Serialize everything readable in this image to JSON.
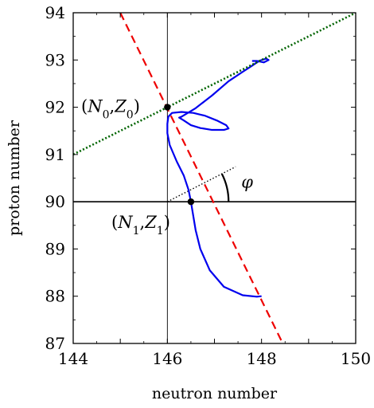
{
  "chart_data": {
    "type": "line",
    "title": "",
    "xlabel": "neutron number",
    "ylabel": "proton number",
    "xlim": [
      144,
      150
    ],
    "ylim": [
      87,
      94
    ],
    "xticks": [
      "144",
      "146",
      "148",
      "150"
    ],
    "yticks": [
      "87",
      "88",
      "89",
      "90",
      "91",
      "92",
      "93",
      "94"
    ],
    "grid": false,
    "series": [
      {
        "style": "solid",
        "color": "#0000ee",
        "x": [
          148.0,
          147.9,
          147.6,
          147.2,
          146.9,
          146.7,
          146.6,
          146.55,
          146.5,
          146.45,
          146.35,
          146.2,
          146.05,
          146.0,
          146.0,
          146.02,
          146.1,
          146.3,
          146.55,
          146.8,
          147.05,
          147.25,
          147.3,
          147.2,
          146.95,
          146.7,
          146.5,
          146.35,
          146.25,
          146.3,
          146.6,
          146.95,
          147.3,
          147.6,
          147.8,
          147.95,
          148.1,
          148.15,
          148.05,
          147.9,
          147.8
        ],
        "y": [
          88.0,
          87.99,
          88.02,
          88.2,
          88.55,
          89.0,
          89.4,
          89.7,
          90.0,
          90.25,
          90.55,
          90.85,
          91.2,
          91.45,
          91.65,
          91.8,
          91.88,
          91.9,
          91.88,
          91.82,
          91.72,
          91.62,
          91.55,
          91.52,
          91.52,
          91.56,
          91.62,
          91.72,
          91.78,
          91.8,
          91.98,
          92.25,
          92.55,
          92.75,
          92.88,
          92.98,
          93.03,
          93.0,
          92.95,
          92.98,
          92.98
        ]
      },
      {
        "style": "dashed",
        "color": "#ee0000",
        "x": [
          145.0,
          148.5
        ],
        "y": [
          94.0,
          86.9
        ]
      },
      {
        "style": "dotted",
        "color": "#006400",
        "x": [
          144.0,
          150.0
        ],
        "y": [
          91.0,
          94.0
        ]
      }
    ],
    "reference_lines": {
      "horizontal_y": 90,
      "vertical_x": 146,
      "phi_arc_line": {
        "x": [
          146.0,
          147.45
        ],
        "y": [
          90.0,
          90.74
        ]
      }
    },
    "points": [
      {
        "label": "(N0,Z0)",
        "x": 146.0,
        "y": 92.0
      },
      {
        "label": "(N1,Z1)",
        "x": 146.5,
        "y": 90.0
      }
    ],
    "annotations": {
      "angle_symbol": "φ"
    }
  }
}
